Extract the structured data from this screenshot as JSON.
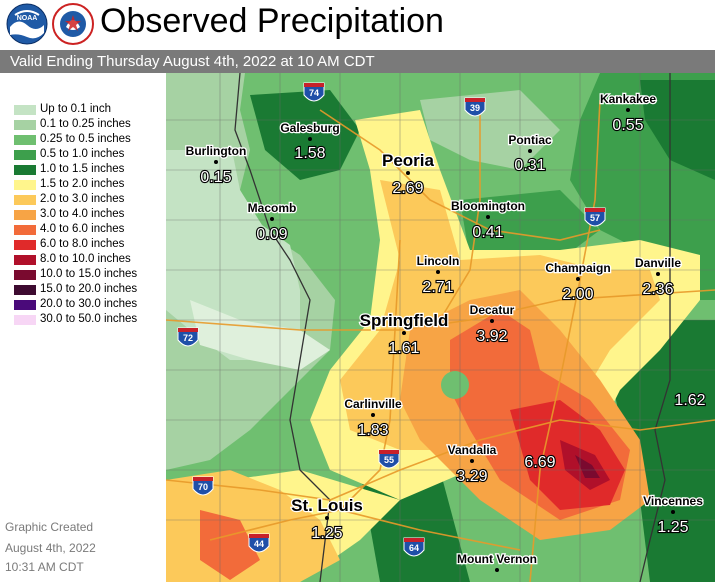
{
  "header": {
    "title": "Observed Precipitation",
    "subtitle": "Valid Ending Thursday August 4th, 2022 at 10 AM CDT",
    "logos": [
      {
        "name": "noaa-logo",
        "text": "NOAA"
      },
      {
        "name": "nws-logo",
        "text": "NATIONAL WEATHER SERVICE"
      }
    ]
  },
  "legend": {
    "items": [
      {
        "label": "Up to 0.1 inch",
        "color": "#c4e3c4"
      },
      {
        "label": "0.1 to 0.25 inches",
        "color": "#a6d2a3"
      },
      {
        "label": "0.25 to 0.5 inches",
        "color": "#6fbf70"
      },
      {
        "label": "0.5 to 1.0 inches",
        "color": "#3d9f4c"
      },
      {
        "label": "1.0 to 1.5 inches",
        "color": "#1a7a33"
      },
      {
        "label": "1.5 to 2.0 inches",
        "color": "#fff58c"
      },
      {
        "label": "2.0 to 3.0 inches",
        "color": "#fcc95a"
      },
      {
        "label": "3.0 to 4.0 inches",
        "color": "#f7a445"
      },
      {
        "label": "4.0 to 6.0 inches",
        "color": "#f26b3a"
      },
      {
        "label": "6.0 to 8.0 inches",
        "color": "#e02a2a"
      },
      {
        "label": "8.0 to 10.0 inches",
        "color": "#b0102a"
      },
      {
        "label": "10.0 to 15.0 inches",
        "color": "#7a0a2f"
      },
      {
        "label": "15.0 to 20.0 inches",
        "color": "#3d0a30"
      },
      {
        "label": "20.0 to 30.0 inches",
        "color": "#4a0a7a"
      },
      {
        "label": "30.0 to 50.0 inches",
        "color": "#f7d6f5"
      }
    ]
  },
  "footer": {
    "line1": "Graphic Created",
    "line2": "August 4th, 2022",
    "line3": "10:31 AM CDT"
  },
  "cities": [
    {
      "name": "Galesburg",
      "value": "1.58",
      "big": false
    },
    {
      "name": "Burlington",
      "value": "0.15",
      "big": false
    },
    {
      "name": "Peoria",
      "value": "2.69",
      "big": true
    },
    {
      "name": "Pontiac",
      "value": "0.31",
      "big": false
    },
    {
      "name": "Kankakee",
      "value": "0.55",
      "big": false
    },
    {
      "name": "Macomb",
      "value": "0.09",
      "big": false
    },
    {
      "name": "Bloomington",
      "value": "0.41",
      "big": false
    },
    {
      "name": "Lincoln",
      "value": "2.71",
      "big": false
    },
    {
      "name": "Champaign",
      "value": "2.00",
      "big": false
    },
    {
      "name": "Danville",
      "value": "2.36",
      "big": false
    },
    {
      "name": "Springfield",
      "value": "1.61",
      "big": true
    },
    {
      "name": "Decatur",
      "value": "3.92",
      "big": false
    },
    {
      "name": "Carlinville",
      "value": "1.83",
      "big": false
    },
    {
      "name": "Vandalia",
      "value": "3.29",
      "big": false
    },
    {
      "name": "St. Louis",
      "value": "1.25",
      "big": true
    },
    {
      "name": "Vincennes",
      "value": "1.25",
      "big": false
    },
    {
      "name": "Mount Vernon",
      "value": "",
      "big": false
    }
  ],
  "extra_values": {
    "east_edge": "1.62",
    "effingham_area": "6.69"
  },
  "interstates": [
    "74",
    "39",
    "57",
    "72",
    "55",
    "70",
    "44",
    "64"
  ]
}
